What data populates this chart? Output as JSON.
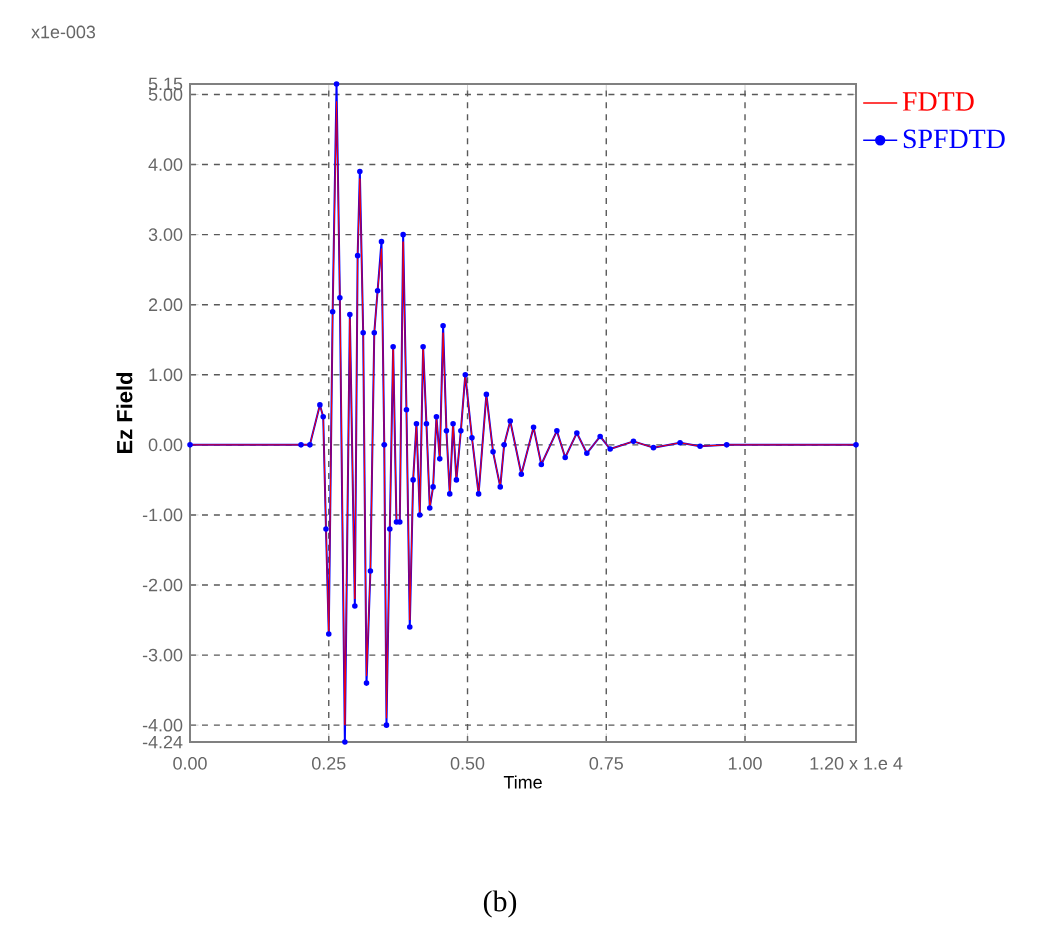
{
  "chart_data": {
    "type": "line",
    "xlabel": "Time",
    "ylabel": "Ez Field",
    "annotations": [
      "x1e-003",
      "(b)"
    ],
    "x": [
      0,
      0.2,
      0.216,
      0.234,
      0.24,
      0.245,
      0.25,
      0.257,
      0.264,
      0.27,
      0.279,
      0.288,
      0.297,
      0.302,
      0.306,
      0.312,
      0.318,
      0.325,
      0.332,
      0.338,
      0.345,
      0.35,
      0.354,
      0.36,
      0.366,
      0.372,
      0.378,
      0.384,
      0.39,
      0.396,
      0.402,
      0.408,
      0.414,
      0.42,
      0.426,
      0.432,
      0.438,
      0.444,
      0.45,
      0.456,
      0.462,
      0.468,
      0.474,
      0.48,
      0.488,
      0.496,
      0.508,
      0.52,
      0.534,
      0.546,
      0.559,
      0.566,
      0.577,
      0.597,
      0.619,
      0.633,
      0.661,
      0.676,
      0.697,
      0.715,
      0.739,
      0.757,
      0.799,
      0.835,
      0.883,
      0.919,
      0.967,
      1.2
    ],
    "series": [
      {
        "name": "FDTD",
        "color": "#ff0000",
        "values": [
          0,
          0,
          0,
          0.57,
          0.4,
          -1.2,
          -2.7,
          1.9,
          4.9,
          2.2,
          -4.0,
          1.8,
          -2.2,
          2.7,
          3.8,
          1.6,
          -3.3,
          -1.8,
          1.6,
          2.2,
          2.8,
          0.0,
          -3.9,
          -1.2,
          1.4,
          -1.1,
          -1.1,
          2.9,
          0.5,
          -2.5,
          -0.5,
          0.3,
          -1.0,
          1.4,
          0.3,
          -0.9,
          -0.6,
          0.4,
          -0.2,
          1.6,
          0.2,
          -0.7,
          0.3,
          -0.5,
          0.2,
          1.0,
          0.1,
          -0.7,
          0.7,
          -0.1,
          -0.6,
          0.0,
          0.34,
          -0.42,
          0.25,
          -0.28,
          0.2,
          -0.18,
          0.17,
          -0.12,
          0.12,
          -0.06,
          0.05,
          -0.04,
          0.03,
          -0.02,
          0,
          0
        ]
      },
      {
        "name": "SPFDTD",
        "color": "#0000ff",
        "marker": "circle",
        "values": [
          0,
          0,
          0,
          0.57,
          0.4,
          -1.2,
          -2.7,
          1.9,
          5.15,
          2.1,
          -4.24,
          1.86,
          -2.3,
          2.7,
          3.9,
          1.6,
          -3.4,
          -1.8,
          1.6,
          2.2,
          2.9,
          0.0,
          -4.0,
          -1.2,
          1.4,
          -1.1,
          -1.1,
          3.0,
          0.5,
          -2.6,
          -0.5,
          0.3,
          -1.0,
          1.4,
          0.3,
          -0.9,
          -0.6,
          0.4,
          -0.2,
          1.7,
          0.2,
          -0.7,
          0.3,
          -0.5,
          0.2,
          1.0,
          0.1,
          -0.7,
          0.72,
          -0.1,
          -0.6,
          0.0,
          0.34,
          -0.42,
          0.25,
          -0.28,
          0.2,
          -0.18,
          0.17,
          -0.12,
          0.12,
          -0.06,
          0.05,
          -0.04,
          0.03,
          -0.02,
          0,
          0
        ]
      }
    ],
    "xlim": [
      0,
      1.2
    ],
    "xticks": [
      {
        "value": 0,
        "label": "0.00"
      },
      {
        "value": 0.25,
        "label": "0.25"
      },
      {
        "value": 0.5,
        "label": "0.50"
      },
      {
        "value": 0.75,
        "label": "0.75"
      },
      {
        "value": 1,
        "label": "1.00"
      },
      {
        "value": 1.2,
        "label": "1.20 x 1.e 4"
      }
    ],
    "ylim": [
      -4.24,
      5.15
    ],
    "yticks": [
      5.15,
      {
        "value": 5,
        "label": "5.00"
      },
      {
        "value": 4,
        "label": "4.00"
      },
      {
        "value": 3,
        "label": "3.00"
      },
      {
        "value": 2,
        "label": "2.00"
      },
      {
        "value": 1,
        "label": "1.00"
      },
      {
        "value": 0,
        "label": "0.00"
      },
      {
        "value": -1,
        "label": "-1.00"
      },
      {
        "value": -2,
        "label": "-2.00"
      },
      {
        "value": -3,
        "label": "-3.00"
      },
      {
        "value": -4,
        "label": "-4.00"
      },
      -4.24
    ],
    "grid": true,
    "legend": "top right",
    "line_style": "solid"
  }
}
